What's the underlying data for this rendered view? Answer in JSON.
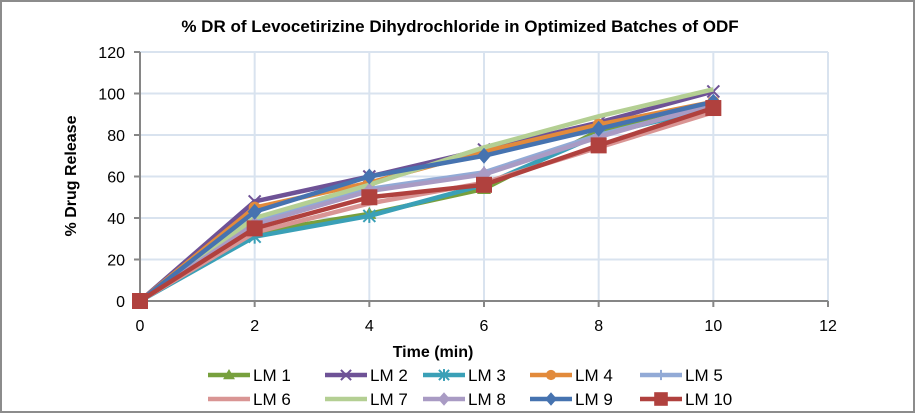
{
  "chart_data": {
    "type": "line",
    "title": "% DR of Levocetirizine Dihydrochloride in Optimized Batches of ODF",
    "xlabel": "Time (min)",
    "ylabel": "% Drug Release",
    "xlim": [
      0,
      12
    ],
    "ylim": [
      0,
      120
    ],
    "xticks": [
      0,
      2,
      4,
      6,
      8,
      10,
      12
    ],
    "yticks": [
      0,
      20,
      40,
      60,
      80,
      100,
      120
    ],
    "grid": true,
    "legend_position": "bottom",
    "x": [
      0,
      2,
      4,
      6,
      8,
      10
    ],
    "series": [
      {
        "name": "LM 1",
        "color": "#77a03d",
        "marker": "triangle",
        "values": [
          0,
          33,
          42,
          54,
          82,
          95
        ]
      },
      {
        "name": "LM 2",
        "color": "#6e5296",
        "marker": "x",
        "values": [
          0,
          48,
          60,
          73,
          86,
          101
        ]
      },
      {
        "name": "LM 3",
        "color": "#3aa0b7",
        "marker": "star",
        "values": [
          0,
          31,
          41,
          56,
          80,
          93
        ]
      },
      {
        "name": "LM 4",
        "color": "#e28a3b",
        "marker": "circle",
        "values": [
          0,
          45,
          57,
          72,
          85,
          96
        ]
      },
      {
        "name": "LM 5",
        "color": "#92aad6",
        "marker": "plus",
        "values": [
          0,
          38,
          54,
          62,
          80,
          94
        ]
      },
      {
        "name": "LM 6",
        "color": "#d99594",
        "marker": "none",
        "values": [
          0,
          33,
          47,
          57,
          74,
          91
        ]
      },
      {
        "name": "LM 7",
        "color": "#b4cf93",
        "marker": "none",
        "values": [
          0,
          40,
          56,
          74,
          89,
          102
        ]
      },
      {
        "name": "LM 8",
        "color": "#a99bc4",
        "marker": "diamond",
        "values": [
          0,
          37,
          53,
          61,
          79,
          95
        ]
      },
      {
        "name": "LM 9",
        "color": "#4673b0",
        "marker": "diamond",
        "values": [
          0,
          43,
          60,
          70,
          83,
          96
        ]
      },
      {
        "name": "LM 10",
        "color": "#b0413e",
        "marker": "square",
        "values": [
          0,
          35,
          50,
          56,
          75,
          93
        ]
      }
    ]
  }
}
